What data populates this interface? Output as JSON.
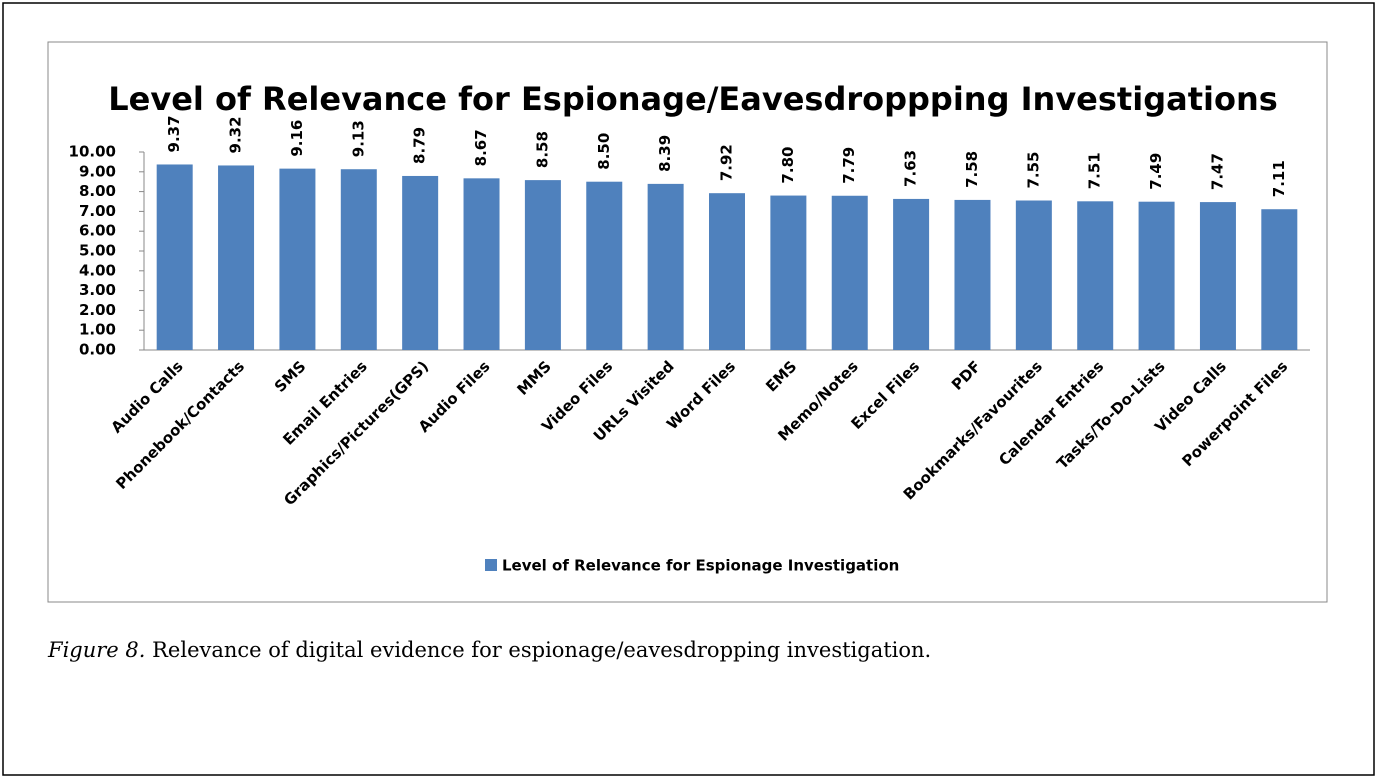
{
  "chart_data": {
    "type": "bar",
    "title": "Level of Relevance for Espionage/Eavesdroppping Investigations",
    "categories": [
      "Audio Calls",
      "Phonebook/Contacts",
      "SMS",
      "Email Entries",
      "Graphics/Pictures(GPS)",
      "Audio Files",
      "MMS",
      "Video Files",
      "URLs Visited",
      "Word Files",
      "EMS",
      "Memo/Notes",
      "Excel Files",
      "PDF",
      "Bookmarks/Favourites",
      "Calendar Entries",
      "Tasks/To-Do-Lists",
      "Video Calls",
      "Powerpoint Files"
    ],
    "series": [
      {
        "name": "Level of Relevance for Espionage Investigation",
        "color": "#4f81bd",
        "values": [
          9.37,
          9.32,
          9.16,
          9.13,
          8.79,
          8.67,
          8.58,
          8.5,
          8.39,
          7.92,
          7.8,
          7.79,
          7.63,
          7.58,
          7.55,
          7.51,
          7.49,
          7.47,
          7.11
        ],
        "value_labels": [
          "9.37",
          "9.32",
          "9.16",
          "9.13",
          "8.79",
          "8.67",
          "8.58",
          "8.50",
          "8.39",
          "7.92",
          "7.80",
          "7.79",
          "7.63",
          "7.58",
          "7.55",
          "7.51",
          "7.49",
          "7.47",
          "7.11"
        ]
      }
    ],
    "ylim": [
      0,
      10
    ],
    "yticks": [
      {
        "value": 0,
        "label": "0.00"
      },
      {
        "value": 1,
        "label": "1.00"
      },
      {
        "value": 2,
        "label": "2.00"
      },
      {
        "value": 3,
        "label": "3.00"
      },
      {
        "value": 4,
        "label": "4.00"
      },
      {
        "value": 5,
        "label": "5.00"
      },
      {
        "value": 6,
        "label": "6.00"
      },
      {
        "value": 7,
        "label": "7.00"
      },
      {
        "value": 8,
        "label": "8.00"
      },
      {
        "value": 9,
        "label": "9.00"
      },
      {
        "value": 10,
        "label": "10.00"
      }
    ],
    "grid": false,
    "legend": "bottom"
  },
  "caption": {
    "label": "Figure 8.",
    "text": " Relevance of digital evidence for espionage/eavesdropping investigation."
  }
}
